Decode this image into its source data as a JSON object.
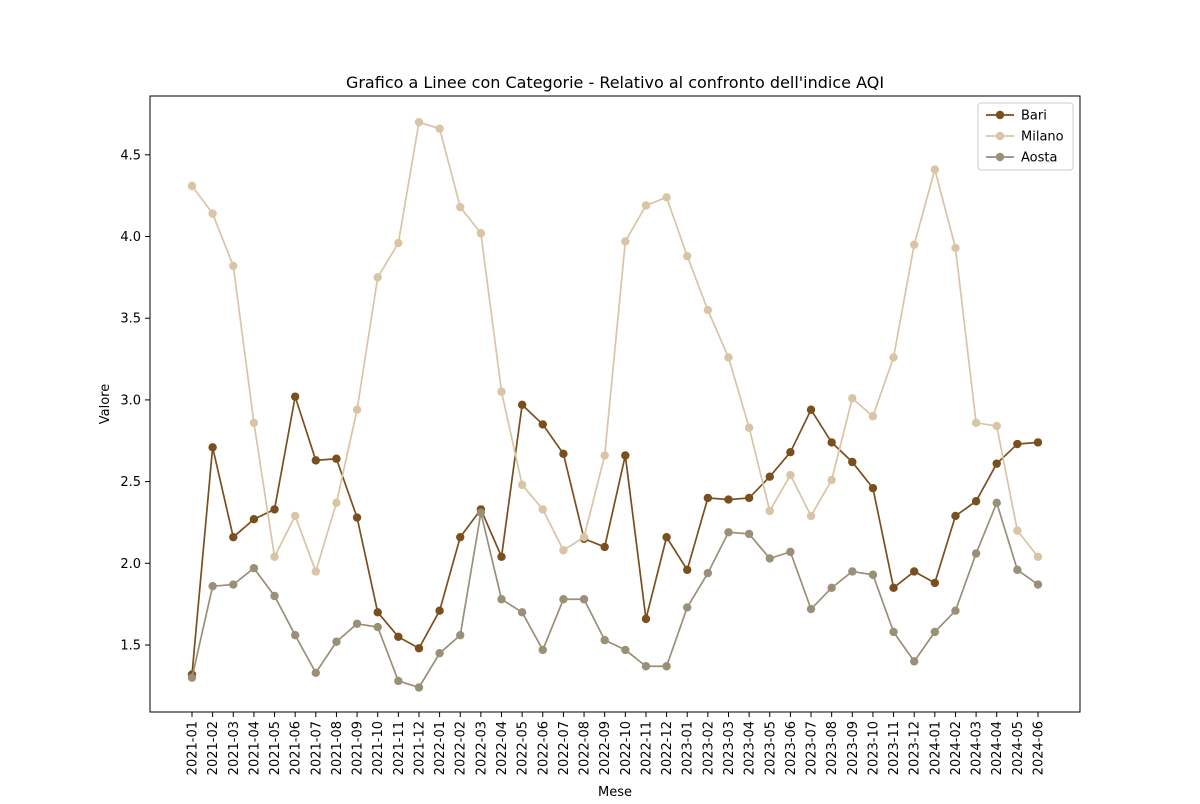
{
  "chart_data": {
    "type": "line",
    "title": "Grafico a Linee con Categorie - Relativo al confronto dell'indice AQI",
    "xlabel": "Mese",
    "ylabel": "Valore",
    "ylim": [
      1.09,
      4.86
    ],
    "yticks": [
      1.5,
      2.0,
      2.5,
      3.0,
      3.5,
      4.0,
      4.5
    ],
    "grid": false,
    "legend_position": "top-right",
    "categories": [
      "2021-01",
      "2021-02",
      "2021-03",
      "2021-04",
      "2021-05",
      "2021-06",
      "2021-07",
      "2021-08",
      "2021-09",
      "2021-10",
      "2021-11",
      "2021-12",
      "2022-01",
      "2022-02",
      "2022-03",
      "2022-04",
      "2022-05",
      "2022-06",
      "2022-07",
      "2022-08",
      "2022-09",
      "2022-10",
      "2022-11",
      "2022-12",
      "2023-01",
      "2023-02",
      "2023-03",
      "2023-04",
      "2023-05",
      "2023-06",
      "2023-07",
      "2023-08",
      "2023-09",
      "2023-10",
      "2023-11",
      "2023-12",
      "2024-01",
      "2024-02",
      "2024-03",
      "2024-04",
      "2024-05",
      "2024-06"
    ],
    "series": [
      {
        "name": "Bari",
        "color": "#7a4f1e",
        "alpha": 1.0,
        "values": [
          1.32,
          2.71,
          2.16,
          2.27,
          2.33,
          3.02,
          2.63,
          2.64,
          2.28,
          1.7,
          1.55,
          1.48,
          1.71,
          2.16,
          2.33,
          2.04,
          2.97,
          2.85,
          2.67,
          2.15,
          2.1,
          2.66,
          1.66,
          2.16,
          1.96,
          2.4,
          2.39,
          2.4,
          2.53,
          2.68,
          2.94,
          2.74,
          2.62,
          2.46,
          1.85,
          1.95,
          1.88,
          2.29,
          2.38,
          2.61,
          2.73,
          2.74
        ]
      },
      {
        "name": "Milano",
        "color": "#d9c4a5",
        "alpha": 1.0,
        "values": [
          4.31,
          4.14,
          3.82,
          2.86,
          2.04,
          2.29,
          1.95,
          2.37,
          2.94,
          3.75,
          3.96,
          4.7,
          4.66,
          4.18,
          4.02,
          3.05,
          2.48,
          2.33,
          2.08,
          2.16,
          2.66,
          3.97,
          4.19,
          4.24,
          3.88,
          3.55,
          3.26,
          2.83,
          2.32,
          2.54,
          2.29,
          2.51,
          3.01,
          2.9,
          3.26,
          3.95,
          4.41,
          3.93,
          2.86,
          2.84,
          2.2,
          2.04
        ]
      },
      {
        "name": "Aosta",
        "color": "#9a8f77",
        "alpha": 1.0,
        "values": [
          1.3,
          1.86,
          1.87,
          1.97,
          1.8,
          1.56,
          1.33,
          1.52,
          1.63,
          1.61,
          1.28,
          1.24,
          1.45,
          1.56,
          2.31,
          1.78,
          1.7,
          1.47,
          1.78,
          1.78,
          1.53,
          1.47,
          1.37,
          1.37,
          1.73,
          1.94,
          2.19,
          2.18,
          2.03,
          2.07,
          1.72,
          1.85,
          1.95,
          1.93,
          1.58,
          1.4,
          1.58,
          1.71,
          2.06,
          2.37,
          1.96,
          1.87
        ]
      }
    ]
  }
}
